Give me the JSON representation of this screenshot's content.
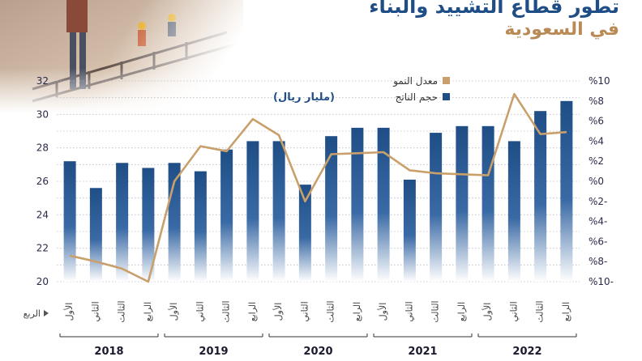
{
  "header": {
    "title_line1": "تطور قطاع التشييد والبناء",
    "title_line2": "في السعودية"
  },
  "colors": {
    "bar_top": "#1f4e86",
    "bar_bottom": "#ffffff",
    "line": "#c9a06b",
    "title": "#1f4e86",
    "subtitle": "#b98a55"
  },
  "chart_data": {
    "type": "bar",
    "unit_label": "(مليار ريال)",
    "quarter_axis_label": "الربع",
    "categories": [
      "الأول",
      "الثاني",
      "الثالث",
      "الرابع",
      "الأول",
      "الثاني",
      "الثالث",
      "الرابع",
      "الأول",
      "الثاني",
      "الثالث",
      "الرابع",
      "الأول",
      "الثاني",
      "الثالث",
      "الرابع",
      "الأول",
      "الثاني",
      "الثالث",
      "الرابع"
    ],
    "years": [
      "2018",
      "2019",
      "2020",
      "2021",
      "2022"
    ],
    "series": [
      {
        "name": "حجم الناتج",
        "axis": "left",
        "type": "bar",
        "values": [
          27.2,
          25.6,
          27.1,
          26.8,
          27.1,
          26.6,
          27.9,
          28.4,
          28.4,
          25.8,
          28.7,
          29.2,
          29.2,
          26.1,
          28.9,
          29.3,
          29.3,
          28.4,
          30.2,
          30.8
        ]
      },
      {
        "name": "معدل النمو",
        "axis": "right",
        "type": "line",
        "values": [
          -7.4,
          -8.0,
          -8.7,
          -10.0,
          0.0,
          3.5,
          3.0,
          6.2,
          4.6,
          -2.0,
          2.7,
          2.8,
          2.9,
          1.1,
          0.8,
          0.7,
          0.6,
          8.7,
          4.7,
          4.9
        ]
      }
    ],
    "left_axis": {
      "ylim": [
        20,
        32
      ],
      "ticks": [
        "20",
        "22",
        "24",
        "26",
        "28",
        "30",
        "32"
      ]
    },
    "right_axis": {
      "ylim": [
        -10,
        10
      ],
      "ticks": [
        "%10-",
        "%8-",
        "%6-",
        "%4-",
        "%2-",
        "%0",
        "%2",
        "%4",
        "%6",
        "%8",
        "%10"
      ]
    },
    "grid": true,
    "legend_position": "top"
  }
}
